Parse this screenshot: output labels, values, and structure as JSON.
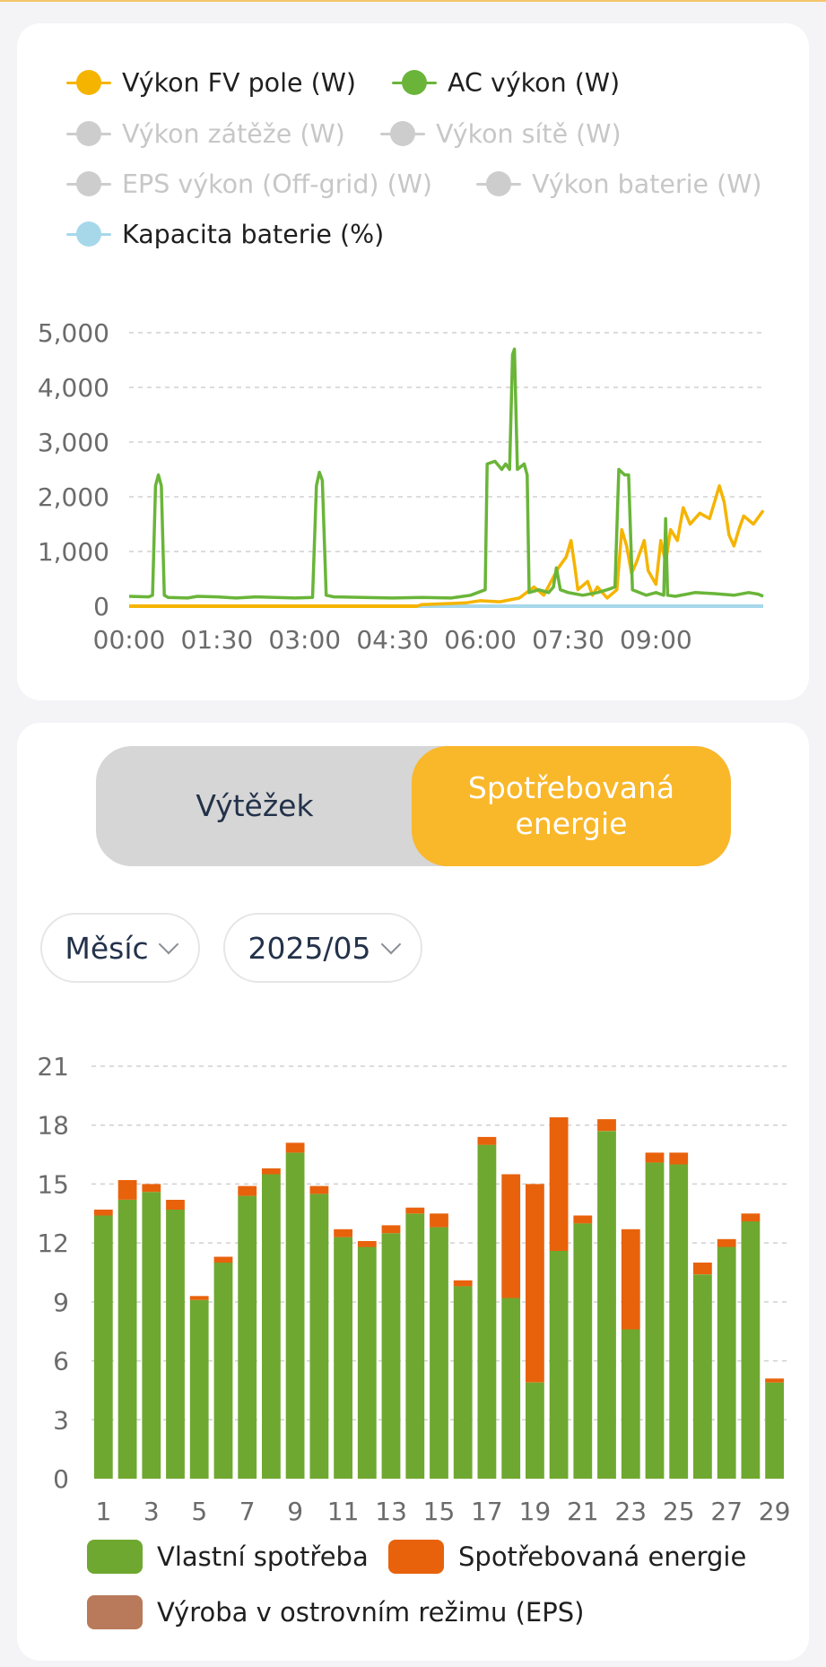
{
  "top_chart": {
    "legend": [
      {
        "label": "Výkon FV pole (W)",
        "color": "#f5b400",
        "active": true
      },
      {
        "label": "AC výkon (W)",
        "color": "#6ab539",
        "active": true
      },
      {
        "label": "Výkon zátěže (W)",
        "color": "#cdcdcd",
        "active": false
      },
      {
        "label": "Výkon sítě (W)",
        "color": "#cdcdcd",
        "active": false
      },
      {
        "label": "EPS výkon (Off-grid) (W)",
        "color": "#cdcdcd",
        "active": false
      },
      {
        "label": "Výkon baterie (W)",
        "color": "#cdcdcd",
        "active": false
      },
      {
        "label": "Kapacita baterie (%)",
        "color": "#a6d8ea",
        "active": true
      }
    ]
  },
  "toggle": {
    "yield_label": "Výtěžek",
    "consumed_label": "Spotřebovaná energie",
    "active": "consumed"
  },
  "filters": {
    "period": "Měsíc",
    "date": "2025/05"
  },
  "bottom_legend": [
    {
      "label": "Vlastní spotřeba",
      "color": "#6fa830"
    },
    {
      "label": "Spotřebovaná energie",
      "color": "#e8620c"
    },
    {
      "label": "Výroba v ostrovním režimu (EPS)",
      "color": "#b87a5a"
    }
  ],
  "chart_data": [
    {
      "type": "line",
      "x_range": [
        "00:00",
        "10:50"
      ],
      "xticks": [
        "00:00",
        "01:30",
        "03:00",
        "04:30",
        "06:00",
        "07:30",
        "09:00"
      ],
      "yticks": [
        "0",
        "1,000",
        "2,000",
        "3,000",
        "4,000",
        "5,000"
      ],
      "ylim": [
        0,
        5000
      ],
      "grid": true,
      "series": [
        {
          "name": "AC výkon (W)",
          "color": "#6ab539",
          "points": [
            [
              "00:00",
              180
            ],
            [
              "00:20",
              170
            ],
            [
              "00:24",
              200
            ],
            [
              "00:27",
              2200
            ],
            [
              "00:30",
              2400
            ],
            [
              "00:33",
              2200
            ],
            [
              "00:36",
              200
            ],
            [
              "00:40",
              160
            ],
            [
              "01:00",
              150
            ],
            [
              "01:10",
              180
            ],
            [
              "01:30",
              170
            ],
            [
              "01:50",
              150
            ],
            [
              "02:10",
              170
            ],
            [
              "02:30",
              160
            ],
            [
              "02:50",
              150
            ],
            [
              "03:08",
              160
            ],
            [
              "03:12",
              2200
            ],
            [
              "03:15",
              2450
            ],
            [
              "03:18",
              2300
            ],
            [
              "03:22",
              200
            ],
            [
              "03:30",
              170
            ],
            [
              "04:00",
              160
            ],
            [
              "04:30",
              150
            ],
            [
              "05:00",
              160
            ],
            [
              "05:30",
              150
            ],
            [
              "05:50",
              200
            ],
            [
              "06:05",
              300
            ],
            [
              "06:07",
              2600
            ],
            [
              "06:15",
              2650
            ],
            [
              "06:22",
              2500
            ],
            [
              "06:26",
              2600
            ],
            [
              "06:30",
              2500
            ],
            [
              "06:33",
              4600
            ],
            [
              "06:35",
              4700
            ],
            [
              "06:38",
              2500
            ],
            [
              "06:45",
              2600
            ],
            [
              "06:48",
              2400
            ],
            [
              "06:50",
              250
            ],
            [
              "07:00",
              300
            ],
            [
              "07:10",
              250
            ],
            [
              "07:15",
              350
            ],
            [
              "07:18",
              700
            ],
            [
              "07:22",
              300
            ],
            [
              "07:30",
              250
            ],
            [
              "07:45",
              200
            ],
            [
              "08:00",
              250
            ],
            [
              "08:10",
              300
            ],
            [
              "08:18",
              350
            ],
            [
              "08:22",
              2500
            ],
            [
              "08:28",
              2400
            ],
            [
              "08:32",
              2400
            ],
            [
              "08:36",
              300
            ],
            [
              "08:50",
              200
            ],
            [
              "09:00",
              250
            ],
            [
              "09:08",
              200
            ],
            [
              "09:10",
              1600
            ],
            [
              "09:12",
              200
            ],
            [
              "09:20",
              180
            ],
            [
              "09:40",
              250
            ],
            [
              "10:00",
              230
            ],
            [
              "10:20",
              200
            ],
            [
              "10:35",
              250
            ],
            [
              "10:45",
              220
            ],
            [
              "10:50",
              180
            ]
          ]
        },
        {
          "name": "Výkon FV pole (W)",
          "color": "#f5b400",
          "points": [
            [
              "00:00",
              0
            ],
            [
              "04:55",
              0
            ],
            [
              "05:00",
              30
            ],
            [
              "05:45",
              60
            ],
            [
              "06:00",
              100
            ],
            [
              "06:20",
              80
            ],
            [
              "06:40",
              150
            ],
            [
              "06:55",
              350
            ],
            [
              "07:05",
              200
            ],
            [
              "07:20",
              700
            ],
            [
              "07:28",
              900
            ],
            [
              "07:33",
              1200
            ],
            [
              "07:37",
              700
            ],
            [
              "07:40",
              300
            ],
            [
              "07:50",
              450
            ],
            [
              "07:55",
              200
            ],
            [
              "08:00",
              350
            ],
            [
              "08:10",
              150
            ],
            [
              "08:20",
              300
            ],
            [
              "08:25",
              1400
            ],
            [
              "08:30",
              1100
            ],
            [
              "08:35",
              600
            ],
            [
              "08:40",
              800
            ],
            [
              "08:48",
              1200
            ],
            [
              "08:52",
              650
            ],
            [
              "09:00",
              400
            ],
            [
              "09:05",
              1200
            ],
            [
              "09:10",
              800
            ],
            [
              "09:15",
              1400
            ],
            [
              "09:22",
              1200
            ],
            [
              "09:28",
              1800
            ],
            [
              "09:35",
              1500
            ],
            [
              "09:45",
              1700
            ],
            [
              "09:55",
              1600
            ],
            [
              "10:05",
              2200
            ],
            [
              "10:10",
              1900
            ],
            [
              "10:15",
              1300
            ],
            [
              "10:20",
              1100
            ],
            [
              "10:25",
              1400
            ],
            [
              "10:30",
              1650
            ],
            [
              "10:40",
              1500
            ],
            [
              "10:50",
              1750
            ]
          ]
        },
        {
          "name": "Kapacita baterie (%)",
          "color": "#a6d8ea",
          "points": [
            [
              "04:55",
              0
            ],
            [
              "10:50",
              0
            ]
          ]
        }
      ]
    },
    {
      "type": "bar",
      "stacked": true,
      "categories": [
        "1",
        "2",
        "3",
        "4",
        "5",
        "6",
        "7",
        "8",
        "9",
        "10",
        "11",
        "12",
        "13",
        "14",
        "15",
        "16",
        "17",
        "18",
        "19",
        "20",
        "21",
        "22",
        "23",
        "24",
        "25",
        "26",
        "27",
        "28",
        "29"
      ],
      "xticks": [
        "1",
        "3",
        "5",
        "7",
        "9",
        "11",
        "13",
        "15",
        "17",
        "19",
        "21",
        "23",
        "25",
        "27",
        "29"
      ],
      "yticks": [
        "0",
        "3",
        "6",
        "9",
        "12",
        "15",
        "18",
        "21"
      ],
      "ylim": [
        0,
        21
      ],
      "grid": true,
      "series": [
        {
          "name": "Vlastní spotřeba",
          "color": "#6fa830",
          "values": [
            13.4,
            14.2,
            14.6,
            13.7,
            9.1,
            11.0,
            14.4,
            15.5,
            16.6,
            14.5,
            12.3,
            11.8,
            12.5,
            13.5,
            12.8,
            9.8,
            17.0,
            9.2,
            4.9,
            11.6,
            13.0,
            17.7,
            7.6,
            16.1,
            16.0,
            10.4,
            11.8,
            13.1,
            4.9
          ]
        },
        {
          "name": "Spotřebovaná energie",
          "color": "#e8620c",
          "values": [
            0.3,
            1.0,
            0.4,
            0.5,
            0.2,
            0.3,
            0.5,
            0.3,
            0.5,
            0.4,
            0.4,
            0.3,
            0.4,
            0.3,
            0.7,
            0.3,
            0.4,
            6.3,
            10.1,
            6.8,
            0.4,
            0.6,
            5.1,
            0.5,
            0.6,
            0.6,
            0.4,
            0.4,
            0.2
          ]
        },
        {
          "name": "Výroba v ostrovním režimu (EPS)",
          "color": "#b87a5a",
          "values": [
            0,
            0,
            0,
            0,
            0,
            0,
            0,
            0,
            0,
            0,
            0,
            0,
            0,
            0,
            0,
            0,
            0,
            0,
            0,
            0,
            0,
            0,
            0,
            0,
            0,
            0,
            0,
            0,
            0
          ]
        }
      ]
    }
  ]
}
